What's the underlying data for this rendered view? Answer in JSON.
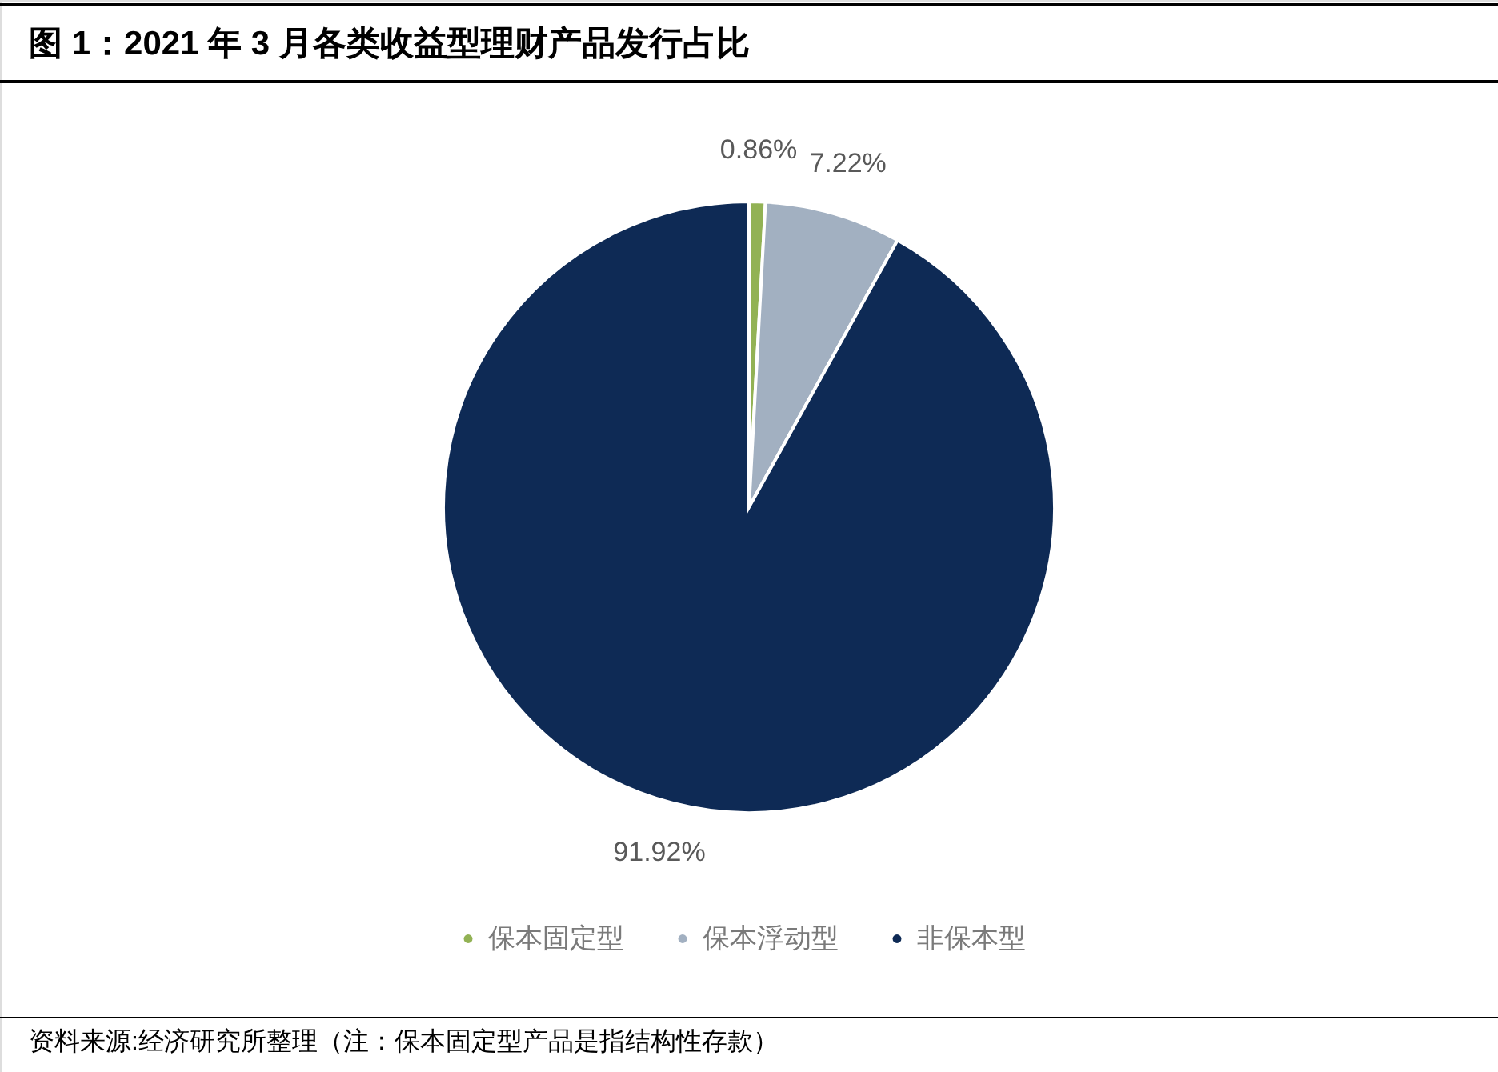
{
  "chart_data": {
    "type": "pie",
    "title": "图 1：2021 年 3 月各类收益型理财产品发行占比",
    "categories": [
      "保本固定型",
      "保本浮动型",
      "非保本型"
    ],
    "values": [
      0.86,
      7.22,
      91.92
    ],
    "colors": [
      "#92b254",
      "#a2b0c1",
      "#0e2a55"
    ],
    "value_labels": [
      "0.86%",
      "7.22%",
      "91.92%"
    ],
    "legend": "bottom",
    "annotations": [
      "资料来源:经济研究所整理（注：保本固定型产品是指结构性存款）"
    ]
  }
}
